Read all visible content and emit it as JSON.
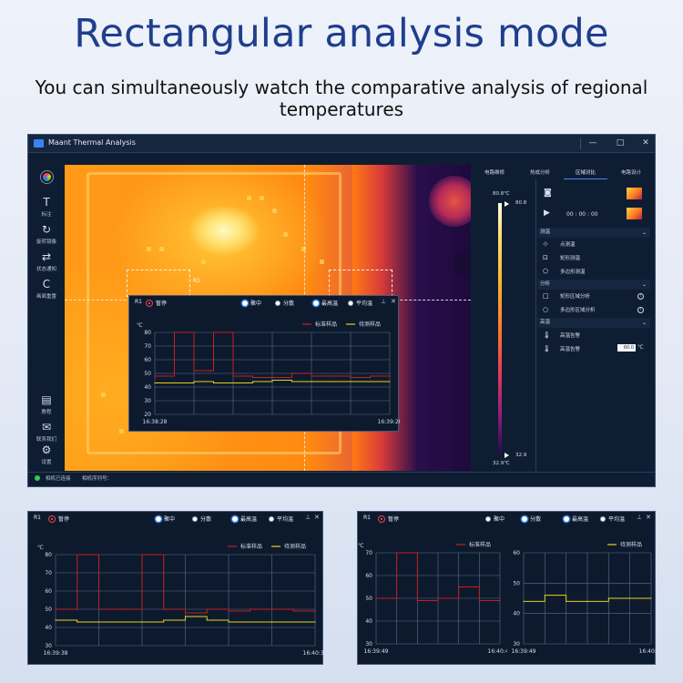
{
  "hero": {
    "title": "Rectangular analysis mode",
    "subtitle": "You can simultaneously watch the comparative analysis of regional temperatures"
  },
  "window": {
    "title": "Maant Thermal Analysis",
    "controls": [
      "|",
      "—",
      "□",
      "✕"
    ]
  },
  "toolbar": {
    "top": [
      {
        "name": "palette",
        "label": ""
      },
      {
        "name": "annotate",
        "icon": "T",
        "label": "标注"
      },
      {
        "name": "rotate-mirror",
        "icon": "↻",
        "label": "旋转镜像"
      },
      {
        "name": "state-notify",
        "icon": "⇄",
        "label": "状态通知"
      },
      {
        "name": "reset",
        "icon": "C",
        "label": "画面重置"
      }
    ],
    "bottom": [
      {
        "name": "tutorial",
        "icon": "▤",
        "label": "教程"
      },
      {
        "name": "contact",
        "icon": "✉",
        "label": "联系我们"
      },
      {
        "name": "settings",
        "icon": "⚙",
        "label": "设置"
      }
    ]
  },
  "roi_label": "R1",
  "panel_header": {
    "r1": "R1",
    "stop": "暂停",
    "opt_focus": "聚中",
    "opt_split": "分散",
    "opt_max": "最高温",
    "opt_avg": "平均温",
    "pin": "⊥",
    "close": "✕"
  },
  "legend": {
    "standard": "标准样品",
    "test": "待测样品"
  },
  "unit": "℃",
  "colors": {
    "standard": "#c81e24",
    "test": "#e6d21a",
    "accent": "#3c8cf0"
  },
  "right_panel": {
    "tabs": [
      "电路维修",
      "热成分析",
      "区域对比",
      "电路设计"
    ],
    "active_tab": 2,
    "scale_top": "80.8℃",
    "scale_top_value": "80.8",
    "scale_bottom": "32.9℃",
    "scale_bottom_value": "32.9",
    "time": "00 : 00 : 00",
    "sections": {
      "measure": "测温",
      "analysis": "分析",
      "alarm": "高温"
    },
    "measure_items": [
      "点测温",
      "矩形测温",
      "多边形测温"
    ],
    "analysis_items": [
      "矩形区域分析",
      "多边形区域分析"
    ],
    "alarm_items": [
      "高温告警",
      "高温告警"
    ],
    "alarm_value": "60.0",
    "alarm_unit": "℃"
  },
  "status": {
    "connected": "相机已连接",
    "serial": "相机序列号："
  },
  "chart_data": [
    {
      "type": "line",
      "title": "",
      "ylabel": "℃",
      "ylim": [
        20,
        80
      ],
      "yticks": [
        20,
        30,
        40,
        50,
        60,
        70,
        80
      ],
      "x": [
        0,
        10,
        20,
        30,
        40,
        50,
        60,
        70,
        80,
        90,
        100,
        110,
        120
      ],
      "xtick_labels": [
        "16:38:28",
        "16:39:28"
      ],
      "legend_position": "top-right",
      "series": [
        {
          "name": "标准样品",
          "values": [
            48,
            80,
            52,
            80,
            48,
            47,
            47,
            50,
            48,
            48,
            47,
            48,
            48
          ]
        },
        {
          "name": "待测样品",
          "values": [
            43,
            43,
            44,
            43,
            43,
            44,
            45,
            44,
            44,
            44,
            44,
            44,
            44
          ]
        }
      ]
    },
    {
      "type": "line",
      "title": "",
      "ylabel": "℃",
      "ylim": [
        30,
        80
      ],
      "yticks": [
        30,
        40,
        50,
        60,
        70,
        80
      ],
      "x": [
        0,
        10,
        20,
        30,
        40,
        50,
        60,
        70,
        80,
        90,
        100,
        110,
        120
      ],
      "xtick_labels": [
        "16:39:38",
        "16:40:38"
      ],
      "legend_position": "top-right",
      "series": [
        {
          "name": "标准样品",
          "values": [
            50,
            80,
            50,
            50,
            80,
            50,
            48,
            50,
            49,
            50,
            50,
            49,
            49
          ]
        },
        {
          "name": "待测样品",
          "values": [
            44,
            43,
            43,
            43,
            43,
            44,
            46,
            44,
            43,
            43,
            43,
            43,
            43
          ]
        }
      ]
    },
    {
      "type": "line",
      "title": "",
      "ylabel": "℃",
      "ylim": [
        30,
        70
      ],
      "yticks": [
        30,
        40,
        50,
        60,
        70
      ],
      "x": [
        0,
        10,
        20,
        30,
        40,
        50,
        60
      ],
      "xtick_labels": [
        "16:39:49",
        "16:40:49"
      ],
      "legend_position": "top-right",
      "series": [
        {
          "name": "标准样品",
          "values": [
            50,
            70,
            49,
            50,
            55,
            49,
            49
          ]
        }
      ]
    },
    {
      "type": "line",
      "title": "",
      "ylabel": "",
      "ylim": [
        30,
        60
      ],
      "yticks": [
        30,
        40,
        50,
        60
      ],
      "x": [
        0,
        10,
        20,
        30,
        40,
        50,
        60
      ],
      "xtick_labels": [
        "16:39:49",
        "16:40:49"
      ],
      "legend_position": "top-right",
      "series": [
        {
          "name": "待测样品",
          "values": [
            44,
            46,
            44,
            44,
            45,
            45,
            45
          ]
        }
      ]
    }
  ]
}
